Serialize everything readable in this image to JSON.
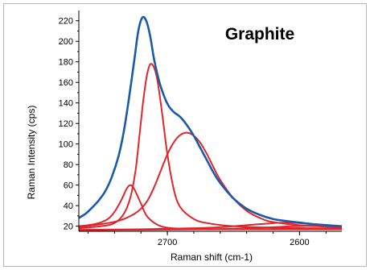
{
  "chart_data": {
    "type": "line",
    "title": "Graphite",
    "xlabel": "Raman shift (cm-1)",
    "ylabel": "Raman Intensity (cps)",
    "x_reversed": true,
    "xlim": [
      2767,
      2568
    ],
    "ylim": [
      15,
      230
    ],
    "x_ticks": [
      2700,
      2600
    ],
    "y_ticks": [
      20,
      40,
      60,
      80,
      100,
      120,
      140,
      160,
      180,
      200,
      220
    ],
    "grid": false,
    "legend": "none",
    "colors": {
      "fit": "#e0262b",
      "sum": "#1a5aa8",
      "axis": "#000000"
    },
    "series": [
      {
        "role": "fit",
        "x": [
          2767,
          2760,
          2752,
          2745,
          2740,
          2735,
          2731,
          2728,
          2725,
          2720,
          2715,
          2705,
          2690,
          2670,
          2650,
          2620,
          2590,
          2568
        ],
        "y": [
          20,
          21,
          23,
          27,
          34,
          45,
          56,
          60,
          56,
          42,
          29,
          20,
          17.5,
          17,
          17,
          17,
          17,
          17
        ]
      },
      {
        "role": "fit",
        "x": [
          2767,
          2750,
          2740,
          2733,
          2728,
          2724,
          2721,
          2718,
          2715,
          2712,
          2708,
          2704,
          2700,
          2695,
          2690,
          2680,
          2670,
          2650,
          2620,
          2590,
          2568
        ],
        "y": [
          18,
          20,
          23,
          32,
          48,
          75,
          110,
          145,
          170,
          178,
          165,
          130,
          90,
          55,
          38,
          27,
          23,
          20,
          18.5,
          18,
          18
        ]
      },
      {
        "role": "fit",
        "x": [
          2767,
          2745,
          2735,
          2725,
          2720,
          2715,
          2710,
          2705,
          2700,
          2695,
          2690,
          2685,
          2680,
          2675,
          2670,
          2665,
          2660,
          2650,
          2640,
          2630,
          2620,
          2600,
          2580,
          2568
        ],
        "y": [
          19,
          23,
          26,
          32,
          37,
          45,
          58,
          74,
          90,
          102,
          109,
          111,
          108,
          101,
          90,
          77,
          65,
          47,
          35,
          28,
          24,
          21,
          19.5,
          19
        ]
      },
      {
        "role": "fit",
        "x": [
          2767,
          2720,
          2680,
          2660,
          2640,
          2625,
          2610,
          2595,
          2580,
          2568
        ],
        "y": [
          16.5,
          17,
          18,
          19,
          21,
          22.5,
          23.5,
          22.5,
          20.5,
          19.5
        ]
      },
      {
        "role": "fit",
        "x": [
          2767,
          2720,
          2670,
          2640,
          2620,
          2605,
          2590,
          2578,
          2568
        ],
        "y": [
          16,
          16.5,
          17,
          18,
          19,
          20,
          20.5,
          20,
          19.5
        ]
      },
      {
        "role": "sum",
        "x": [
          2767,
          2762,
          2757,
          2752,
          2747,
          2742,
          2737,
          2733,
          2729,
          2725,
          2722,
          2719,
          2716,
          2713,
          2710,
          2706,
          2702,
          2699,
          2695,
          2690,
          2685,
          2680,
          2675,
          2670,
          2665,
          2660,
          2650,
          2640,
          2630,
          2620,
          2610,
          2600,
          2590,
          2580,
          2568
        ],
        "y": [
          28,
          32,
          38,
          45,
          54,
          68,
          88,
          112,
          145,
          182,
          210,
          223,
          220,
          205,
          182,
          160,
          145,
          137,
          131,
          126,
          118,
          108,
          96,
          84,
          72,
          62,
          47,
          37,
          31,
          27,
          25,
          23.5,
          22,
          21,
          20
        ]
      }
    ]
  }
}
